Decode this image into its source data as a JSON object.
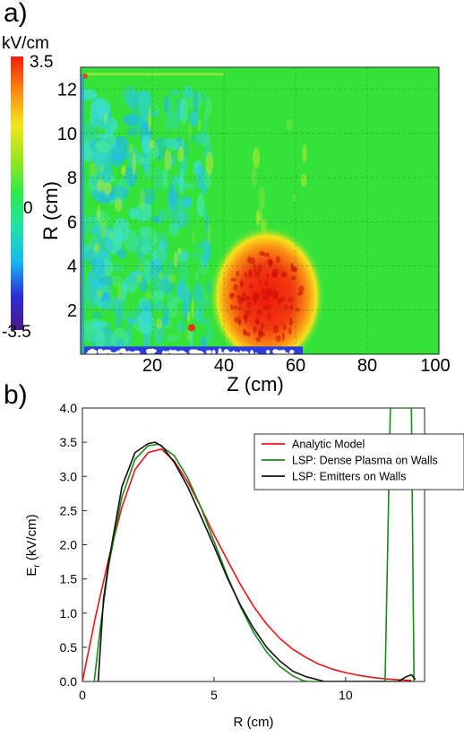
{
  "panel_a": {
    "label": "a)",
    "colorbar": {
      "unit": "kV/cm",
      "max_label": "3.5",
      "mid_label": "0",
      "min_label": "-3.5",
      "range": [
        -3.5,
        3.5
      ],
      "colors": [
        "#4b1a86",
        "#2a2dd8",
        "#19b8f0",
        "#20e3a8",
        "#2ee84a",
        "#9ae61e",
        "#f2e51a",
        "#fa8a12",
        "#f21c0c"
      ]
    },
    "ylabel": "R (cm)",
    "xlabel": "Z (cm)",
    "xlim": [
      0,
      100
    ],
    "ylim": [
      0,
      13
    ],
    "xticks": [
      "20",
      "40",
      "60",
      "80",
      "100"
    ],
    "yticks": [
      "2",
      "4",
      "6",
      "8",
      "10",
      "12"
    ],
    "background_color": "#35e23a",
    "hotspot": {
      "center_z": 52,
      "center_r": 2.6,
      "radius_z": 12,
      "radius_r": 2.4,
      "peak_kv_cm": 3.5
    }
  },
  "panel_b": {
    "label": "b)",
    "chart_data": {
      "type": "line",
      "xlabel": "R (cm)",
      "ylabel_main": "E",
      "ylabel_sub": "r",
      "ylabel_tail": " (kV/cm)",
      "xlim": [
        0,
        13
      ],
      "ylim": [
        0,
        4.0
      ],
      "xticks": [
        0,
        5,
        10
      ],
      "xtick_labels": [
        "0",
        "5",
        "10"
      ],
      "yticks": [
        0,
        0.5,
        1.0,
        1.5,
        2.0,
        2.5,
        3.0,
        3.5,
        4.0
      ],
      "ytick_labels": [
        "0.0",
        "0.5",
        "1.0",
        "1.5",
        "2.0",
        "2.5",
        "3.0",
        "3.5",
        "4.0"
      ],
      "legend_position": "top-right",
      "series": [
        {
          "name": "Analytic Model",
          "color": "#e8141a",
          "x": [
            0,
            0.5,
            1.0,
            1.5,
            2.0,
            2.5,
            3.0,
            3.5,
            4.0,
            4.5,
            5.0,
            5.5,
            6.0,
            6.5,
            7.0,
            7.5,
            8.0,
            8.5,
            9.0,
            9.5,
            10.0,
            10.5,
            11.0,
            11.5,
            12.0,
            12.5
          ],
          "y": [
            0.0,
            0.95,
            1.8,
            2.55,
            3.1,
            3.35,
            3.4,
            3.22,
            2.92,
            2.55,
            2.15,
            1.78,
            1.42,
            1.1,
            0.84,
            0.63,
            0.47,
            0.35,
            0.25,
            0.18,
            0.13,
            0.09,
            0.06,
            0.04,
            0.025,
            0.015
          ]
        },
        {
          "name": "LSP: Dense Plasma on Walls",
          "color": "#1a8a1a",
          "x": [
            0.45,
            0.7,
            1.0,
            1.5,
            2.0,
            2.5,
            2.9,
            3.5,
            4.0,
            4.5,
            5.0,
            5.5,
            6.0,
            6.5,
            7.0,
            7.5,
            8.0,
            8.4,
            8.6,
            11.5,
            11.7,
            12.5,
            12.6
          ],
          "y": [
            0.0,
            0.85,
            1.7,
            2.7,
            3.25,
            3.45,
            3.47,
            3.3,
            2.98,
            2.55,
            2.05,
            1.55,
            1.1,
            0.72,
            0.43,
            0.22,
            0.08,
            0.01,
            0.0,
            0.0,
            4.0,
            4.0,
            0.0
          ]
        },
        {
          "name": "LSP: Emitters on Walls",
          "color": "#111111",
          "x": [
            0.6,
            0.8,
            1.0,
            1.5,
            2.0,
            2.5,
            2.75,
            3.0,
            3.5,
            4.0,
            4.5,
            5.0,
            5.5,
            6.0,
            6.5,
            7.0,
            7.5,
            8.0,
            8.5,
            9.0,
            9.2,
            12.0,
            12.3,
            12.5,
            12.65
          ],
          "y": [
            0.0,
            1.2,
            1.75,
            2.85,
            3.35,
            3.48,
            3.5,
            3.45,
            3.2,
            2.85,
            2.42,
            1.98,
            1.52,
            1.12,
            0.78,
            0.5,
            0.3,
            0.15,
            0.07,
            0.02,
            0.0,
            0.0,
            0.07,
            0.1,
            0.03
          ]
        }
      ]
    }
  }
}
